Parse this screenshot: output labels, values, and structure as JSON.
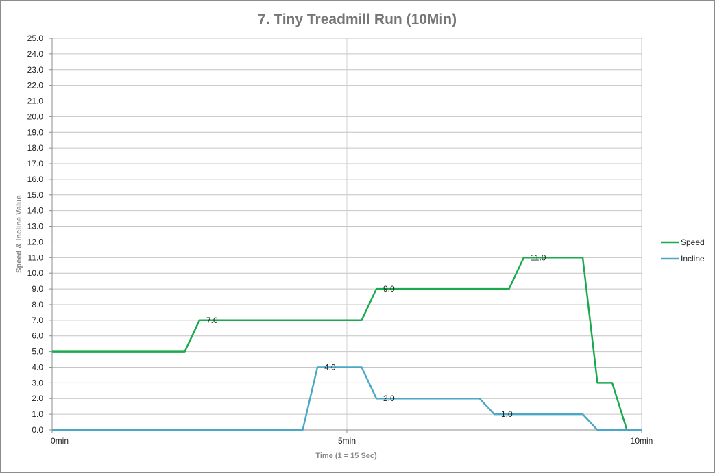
{
  "chart_data": {
    "type": "line",
    "title": "7. Tiny Treadmill Run (10Min)",
    "xlabel": "Time  (1 = 15 Sec)",
    "ylabel": "Speed  &  Incline Value",
    "xlim": [
      0,
      40
    ],
    "ylim": [
      0,
      25
    ],
    "ytick_step": 1,
    "y_tick_labels": [
      "0.0",
      "1.0",
      "2.0",
      "3.0",
      "4.0",
      "5.0",
      "6.0",
      "7.0",
      "8.0",
      "9.0",
      "10.0",
      "11.0",
      "12.0",
      "13.0",
      "14.0",
      "15.0",
      "16.0",
      "17.0",
      "18.0",
      "19.0",
      "20.0",
      "21.0",
      "22.0",
      "23.0",
      "24.0",
      "25.0"
    ],
    "x_tick_labels": [
      {
        "x": 0,
        "label": "0min"
      },
      {
        "x": 20,
        "label": "5min"
      },
      {
        "x": 40,
        "label": "10min"
      }
    ],
    "vertical_gridlines_at": [
      20
    ],
    "grid": true,
    "legend_position": "right",
    "series": [
      {
        "name": "Speed",
        "color": "#1aaa4e",
        "x": [
          0,
          9,
          10,
          21,
          22,
          31,
          32,
          36,
          37,
          38,
          39
        ],
        "y": [
          5,
          5,
          7,
          7,
          9,
          9,
          11,
          11,
          3,
          3,
          0
        ]
      },
      {
        "name": "Incline",
        "color": "#4aa8c6",
        "x": [
          0,
          17,
          18,
          21,
          22,
          29,
          30,
          36,
          37,
          40
        ],
        "y": [
          0,
          0,
          4,
          4,
          2,
          2,
          1,
          1,
          0,
          0
        ]
      }
    ],
    "data_labels": [
      {
        "x": 10,
        "y": 7,
        "text": "7.0"
      },
      {
        "x": 22,
        "y": 9,
        "text": "9.0"
      },
      {
        "x": 32,
        "y": 11,
        "text": "11.0"
      },
      {
        "x": 18,
        "y": 4,
        "text": "4.0"
      },
      {
        "x": 22,
        "y": 2,
        "text": "2.0"
      },
      {
        "x": 30,
        "y": 1,
        "text": "1.0"
      }
    ]
  }
}
